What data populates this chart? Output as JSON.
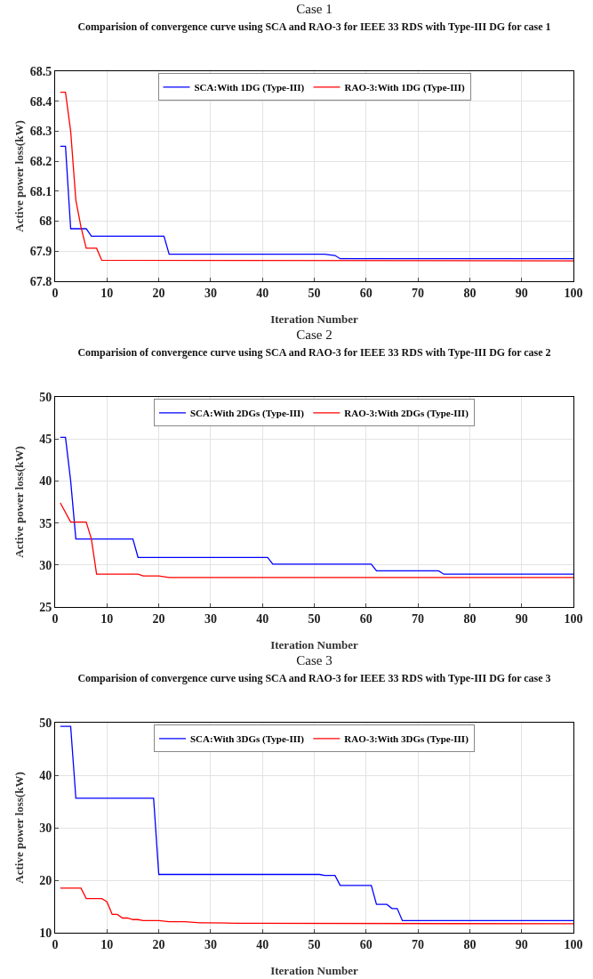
{
  "chart_data": [
    {
      "type": "line",
      "title": "Case 1",
      "subtitle": "Comparision of convergence curve using SCA and RAO-3 for IEEE 33 RDS with Type-III DG for case 1",
      "xlabel": "Iteration Number",
      "ylabel": "Active power loss(kW)",
      "xlim": [
        0,
        100
      ],
      "xticks": [
        0,
        10,
        20,
        30,
        40,
        50,
        60,
        70,
        80,
        90,
        100
      ],
      "ylim": [
        67.8,
        68.5
      ],
      "yticks": [
        67.8,
        67.9,
        68,
        68.1,
        68.2,
        68.3,
        68.4,
        68.5
      ],
      "grid": true,
      "legend": "top",
      "line_style": "solid",
      "series": [
        {
          "name": "SCA:With 1DG (Type-III)",
          "color": "#0000ff",
          "x": [
            1,
            2,
            3,
            6,
            7,
            21,
            22,
            52,
            54,
            55,
            100
          ],
          "values": [
            68.25,
            68.25,
            67.975,
            67.975,
            67.95,
            67.95,
            67.89,
            67.89,
            67.886,
            67.875,
            67.875
          ]
        },
        {
          "name": "RAO-3:With 1DG (Type-III)",
          "color": "#ff0000",
          "x": [
            1,
            2,
            3,
            4,
            5,
            6,
            8,
            9,
            100
          ],
          "values": [
            68.43,
            68.43,
            68.3,
            68.07,
            67.98,
            67.91,
            67.91,
            67.87,
            67.868
          ]
        }
      ]
    },
    {
      "type": "line",
      "title": "Case 2",
      "subtitle": "Comparision of convergence curve using SCA and RAO-3 for IEEE 33 RDS with Type-III DG for case 2",
      "xlabel": "Iteration Number",
      "ylabel": "Active power loss(kW)",
      "xlim": [
        0,
        100
      ],
      "xticks": [
        0,
        10,
        20,
        30,
        40,
        50,
        60,
        70,
        80,
        90,
        100
      ],
      "ylim": [
        25,
        50
      ],
      "yticks": [
        25,
        30,
        35,
        40,
        45,
        50
      ],
      "grid": true,
      "legend": "top",
      "line_style": "solid",
      "series": [
        {
          "name": "SCA:With 2DGs (Type-III)",
          "color": "#0000ff",
          "x": [
            1,
            2,
            3,
            4,
            15,
            16,
            41,
            42,
            61,
            62,
            74,
            75,
            100
          ],
          "values": [
            45.2,
            45.2,
            40,
            33.1,
            33.1,
            30.9,
            30.9,
            30.1,
            30.1,
            29.3,
            29.3,
            28.9,
            28.9
          ]
        },
        {
          "name": "RAO-3:With 2DGs (Type-III)",
          "color": "#ff0000",
          "x": [
            1,
            3,
            6,
            7,
            8,
            16,
            17,
            20,
            22,
            100
          ],
          "values": [
            37.4,
            35.1,
            35.1,
            33.1,
            28.9,
            28.9,
            28.7,
            28.7,
            28.5,
            28.5
          ]
        }
      ]
    },
    {
      "type": "line",
      "title": "Case 3",
      "subtitle": "Comparision of convergence curve using SCA and RAO-3 for IEEE 33 RDS with Type-III DG for case 3",
      "xlabel": "Iteration Number",
      "ylabel": "Active power loss(kW)",
      "xlim": [
        0,
        100
      ],
      "xticks": [
        0,
        10,
        20,
        30,
        40,
        50,
        60,
        70,
        80,
        90,
        100
      ],
      "ylim": [
        10,
        50
      ],
      "yticks": [
        10,
        20,
        30,
        40,
        50
      ],
      "grid": true,
      "legend": "top",
      "line_style": "solid",
      "series": [
        {
          "name": "SCA:With 3DGs (Type-III)",
          "color": "#0000ff",
          "x": [
            1,
            3,
            4,
            19,
            20,
            51,
            52,
            54,
            55,
            61,
            62,
            64,
            65,
            66,
            67,
            100
          ],
          "values": [
            49.3,
            49.3,
            35.6,
            35.6,
            21.1,
            21.1,
            20.9,
            20.9,
            19,
            19,
            15.4,
            15.4,
            14.6,
            14.6,
            12.3,
            12.3
          ]
        },
        {
          "name": "RAO-3:With 3DGs (Type-III)",
          "color": "#ff0000",
          "x": [
            1,
            5,
            6,
            9,
            10,
            11,
            12,
            13,
            14,
            15,
            16,
            17,
            20,
            22,
            25,
            28,
            30,
            35,
            100
          ],
          "values": [
            18.5,
            18.5,
            16.5,
            16.5,
            15.9,
            13.5,
            13.5,
            12.8,
            12.8,
            12.5,
            12.5,
            12.3,
            12.3,
            12.1,
            12.1,
            11.9,
            11.9,
            11.8,
            11.7
          ]
        }
      ]
    }
  ]
}
